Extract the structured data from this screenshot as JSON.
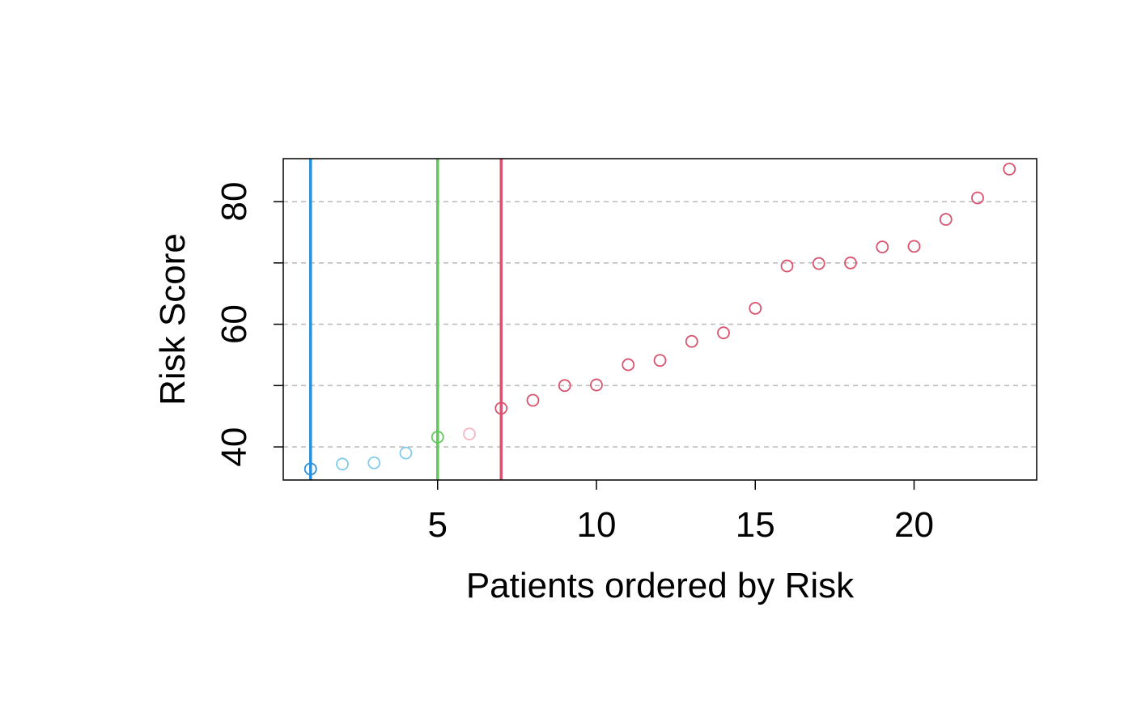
{
  "chart_data": {
    "type": "scatter",
    "title": "",
    "xlabel": "Patients ordered by Risk",
    "ylabel": "Risk Score",
    "xlim": [
      0.14,
      23.86
    ],
    "ylim": [
      34.6,
      87.0
    ],
    "x_ticks": [
      5,
      10,
      15,
      20
    ],
    "y_ticks": [
      40,
      60,
      80
    ],
    "y_minor_ticks": [
      40,
      50,
      60,
      70,
      80
    ],
    "grid": "horizontal dashed",
    "x": [
      1,
      2,
      3,
      4,
      5,
      6,
      7,
      8,
      9,
      10,
      11,
      12,
      13,
      14,
      15,
      16,
      17,
      18,
      19,
      20,
      21,
      22,
      23
    ],
    "values": [
      36.4,
      37.2,
      37.4,
      39.0,
      41.6,
      42.1,
      46.3,
      47.6,
      50.0,
      50.1,
      53.4,
      54.1,
      57.2,
      58.6,
      62.6,
      69.5,
      69.9,
      70.0,
      72.6,
      72.7,
      77.1,
      80.6,
      85.3
    ],
    "point_colors": [
      "#2b8fd9",
      "#7fcdea",
      "#7fcdea",
      "#7fcdea",
      "#61c95a",
      "#f6b7c2",
      "#d9536e",
      "#d9536e",
      "#d9536e",
      "#d9536e",
      "#d9536e",
      "#d9536e",
      "#d9536e",
      "#d9536e",
      "#d9536e",
      "#d9536e",
      "#d9536e",
      "#d9536e",
      "#d9536e",
      "#d9536e",
      "#d9536e",
      "#d9536e",
      "#d9536e"
    ],
    "vlines": [
      {
        "x": 1,
        "color": "#2b8fd9"
      },
      {
        "x": 5,
        "color": "#61c95a"
      },
      {
        "x": 7,
        "color": "#d9536e"
      }
    ]
  }
}
